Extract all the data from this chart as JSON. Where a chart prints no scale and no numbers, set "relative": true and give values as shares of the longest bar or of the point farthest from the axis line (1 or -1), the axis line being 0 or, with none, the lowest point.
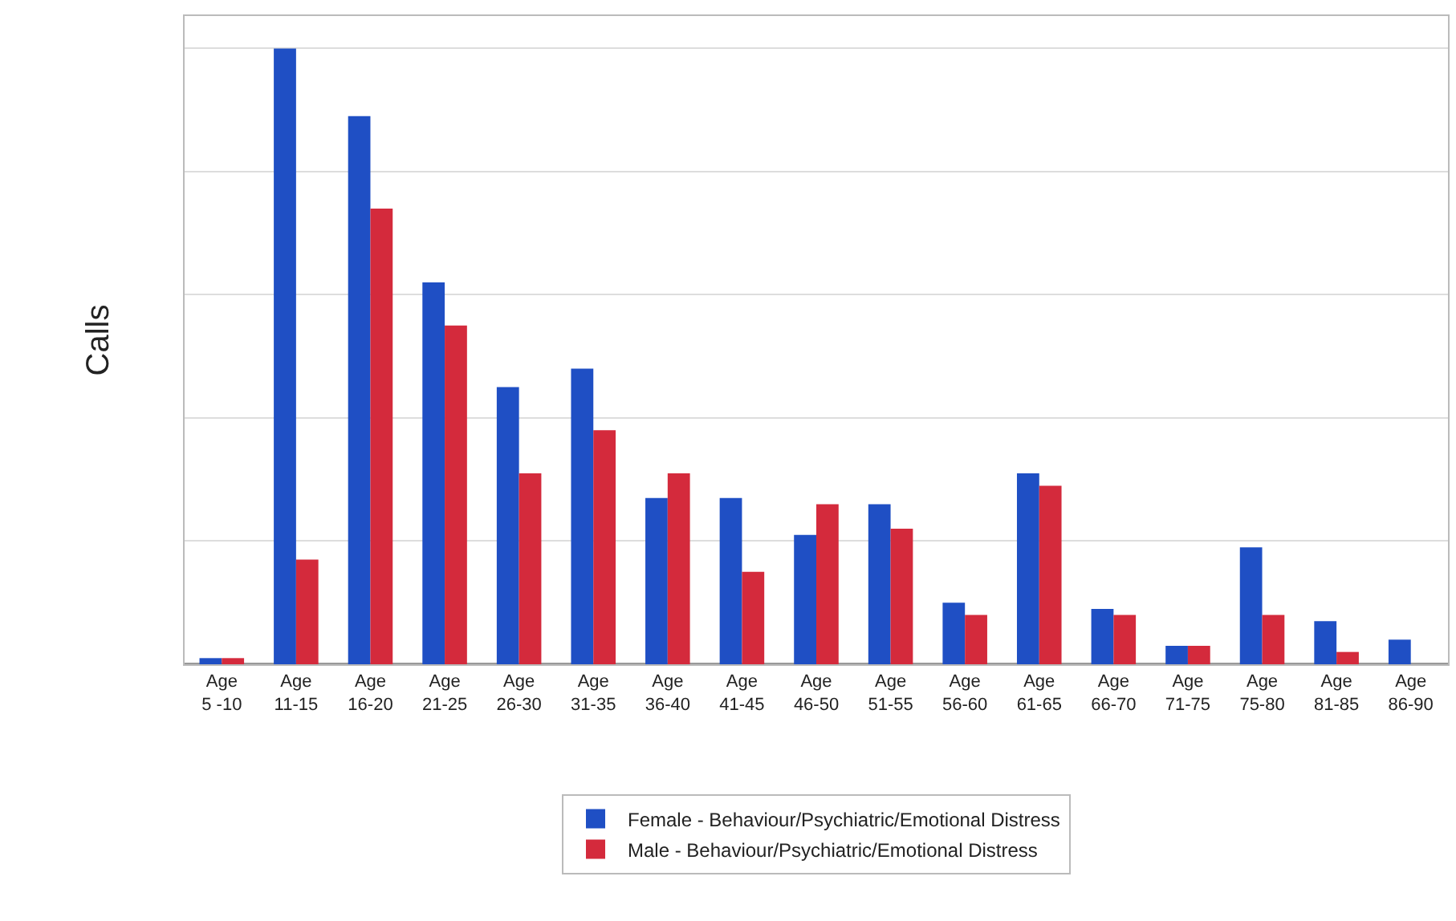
{
  "chart_data": {
    "type": "bar",
    "relative": true,
    "ylabel": "Calls",
    "categories": [
      "Age 5 -10",
      "Age 11-15",
      "Age 16-20",
      "Age 21-25",
      "Age 26-30",
      "Age 31-35",
      "Age 36-40",
      "Age 41-45",
      "Age 46-50",
      "Age 51-55",
      "Age 56-60",
      "Age 61-65",
      "Age 66-70",
      "Age 71-75",
      "Age 75-80",
      "Age 81-85",
      "Age 86-90"
    ],
    "series": [
      {
        "name": "Female - Behaviour/Psychiatric/Emotional Distress",
        "color": "#1f4fc4",
        "values": [
          0.01,
          1,
          0.89,
          0.62,
          0.45,
          0.48,
          0.27,
          0.27,
          0.21,
          0.26,
          0.1,
          0.31,
          0.09,
          0.03,
          0.19,
          0.07,
          0.04
        ]
      },
      {
        "name": "Male - Behaviour/Psychiatric/Emotional Distress",
        "color": "#d42a3c",
        "values": [
          0.01,
          0.17,
          0.74,
          0.55,
          0.31,
          0.38,
          0.31,
          0.15,
          0.26,
          0.22,
          0.08,
          0.29,
          0.08,
          0.03,
          0.08,
          0.02,
          null
        ]
      }
    ],
    "grid": "y",
    "legend": "bottom"
  }
}
